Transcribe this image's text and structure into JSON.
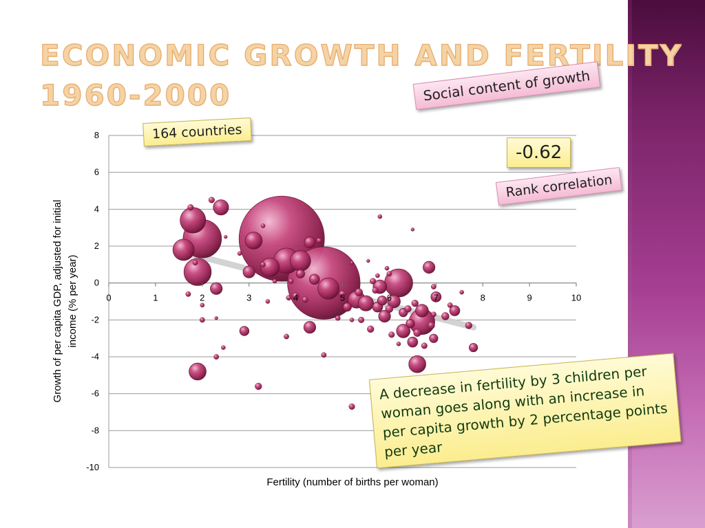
{
  "slide": {
    "title_line1": "ECONOMIC GROWTH AND FERTILITY",
    "title_line2": "1960-2000",
    "countries_label": "164 countries",
    "social_label": "Social content of growth",
    "correlation_value": "-0.62",
    "rank_label": "Rank correlation",
    "note_text": "A decrease in fertility by 3 children per woman goes along with an increase in per capita growth by 2 percentage points per year",
    "colors": {
      "bubble": "#a3285a",
      "trend": "#cccccc",
      "title": "#f4d3a4",
      "stripe": "#7a2368"
    }
  },
  "chart_data": {
    "type": "bubble",
    "title": "",
    "xlabel": "Fertility (number of births per woman)",
    "ylabel_line1": "Growth of per capita GDP, adjusted for initial",
    "ylabel_line2": "income (% per year)",
    "xlim": [
      0,
      10
    ],
    "ylim": [
      -10,
      8
    ],
    "xticks": [
      0,
      1,
      2,
      3,
      4,
      5,
      6,
      7,
      8,
      9,
      10
    ],
    "yticks": [
      8,
      6,
      4,
      2,
      0,
      -2,
      -4,
      -6,
      -8,
      -10
    ],
    "grid": "horizontal",
    "trendline": {
      "x": [
        1.7,
        7.8
      ],
      "y": [
        1.6,
        -2.4
      ]
    },
    "points": [
      {
        "x": 3.7,
        "y": 2.4,
        "size": 1.0
      },
      {
        "x": 4.6,
        "y": 0.0,
        "size": 0.85
      },
      {
        "x": 2.0,
        "y": 2.4,
        "size": 0.45
      },
      {
        "x": 1.8,
        "y": 3.4,
        "size": 0.3
      },
      {
        "x": 1.6,
        "y": 1.8,
        "size": 0.25
      },
      {
        "x": 1.9,
        "y": 0.6,
        "size": 0.32
      },
      {
        "x": 2.4,
        "y": 4.1,
        "size": 0.18
      },
      {
        "x": 3.1,
        "y": 2.3,
        "size": 0.2
      },
      {
        "x": 3.0,
        "y": 0.6,
        "size": 0.14
      },
      {
        "x": 3.45,
        "y": 0.85,
        "size": 0.22
      },
      {
        "x": 3.8,
        "y": 1.2,
        "size": 0.3
      },
      {
        "x": 4.1,
        "y": 1.2,
        "size": 0.24
      },
      {
        "x": 4.3,
        "y": 2.2,
        "size": 0.13
      },
      {
        "x": 4.7,
        "y": -0.3,
        "size": 0.25
      },
      {
        "x": 6.2,
        "y": 0.0,
        "size": 0.33
      },
      {
        "x": 5.3,
        "y": -0.9,
        "size": 0.2
      },
      {
        "x": 5.5,
        "y": -1.1,
        "size": 0.18
      },
      {
        "x": 5.8,
        "y": -0.2,
        "size": 0.16
      },
      {
        "x": 5.9,
        "y": -1.8,
        "size": 0.14
      },
      {
        "x": 6.1,
        "y": -1.0,
        "size": 0.15
      },
      {
        "x": 6.7,
        "y": -1.5,
        "size": 0.15
      },
      {
        "x": 6.7,
        "y": -2.1,
        "size": 0.3
      },
      {
        "x": 6.3,
        "y": -2.6,
        "size": 0.16
      },
      {
        "x": 6.5,
        "y": -3.2,
        "size": 0.12
      },
      {
        "x": 6.6,
        "y": -4.4,
        "size": 0.2
      },
      {
        "x": 6.85,
        "y": 0.85,
        "size": 0.14
      },
      {
        "x": 7.0,
        "y": -0.75,
        "size": 0.12
      },
      {
        "x": 7.4,
        "y": -1.5,
        "size": 0.12
      },
      {
        "x": 7.8,
        "y": -3.5,
        "size": 0.1
      },
      {
        "x": 7.7,
        "y": -2.3,
        "size": 0.08
      },
      {
        "x": 7.2,
        "y": -1.8,
        "size": 0.09
      },
      {
        "x": 6.95,
        "y": -3.0,
        "size": 0.1
      },
      {
        "x": 1.9,
        "y": -4.8,
        "size": 0.2
      },
      {
        "x": 2.3,
        "y": -0.3,
        "size": 0.14
      },
      {
        "x": 2.9,
        "y": -2.6,
        "size": 0.11
      },
      {
        "x": 3.2,
        "y": -5.6,
        "size": 0.08
      },
      {
        "x": 4.3,
        "y": -2.4,
        "size": 0.14
      },
      {
        "x": 5.2,
        "y": -6.7,
        "size": 0.07
      },
      {
        "x": 4.6,
        "y": -3.9,
        "size": 0.06
      },
      {
        "x": 3.8,
        "y": -2.9,
        "size": 0.06
      },
      {
        "x": 2.0,
        "y": -2.0,
        "size": 0.06
      },
      {
        "x": 2.3,
        "y": -1.9,
        "size": 0.04
      },
      {
        "x": 2.3,
        "y": -4.0,
        "size": 0.06
      },
      {
        "x": 2.45,
        "y": -3.5,
        "size": 0.05
      },
      {
        "x": 1.7,
        "y": -0.6,
        "size": 0.06
      },
      {
        "x": 1.75,
        "y": 4.1,
        "size": 0.07
      },
      {
        "x": 2.2,
        "y": 4.5,
        "size": 0.07
      },
      {
        "x": 5.8,
        "y": 3.6,
        "size": 0.05
      },
      {
        "x": 6.5,
        "y": 2.9,
        "size": 0.04
      },
      {
        "x": 4.5,
        "y": 2.3,
        "size": 0.06
      },
      {
        "x": 4.1,
        "y": 0.5,
        "size": 0.1
      },
      {
        "x": 4.4,
        "y": 0.2,
        "size": 0.12
      },
      {
        "x": 4.0,
        "y": -0.7,
        "size": 0.08
      },
      {
        "x": 4.2,
        "y": -0.9,
        "size": 0.07
      },
      {
        "x": 5.0,
        "y": -0.6,
        "size": 0.08
      },
      {
        "x": 5.1,
        "y": -1.3,
        "size": 0.1
      },
      {
        "x": 5.35,
        "y": -0.5,
        "size": 0.09
      },
      {
        "x": 5.4,
        "y": -2.0,
        "size": 0.07
      },
      {
        "x": 5.6,
        "y": -2.5,
        "size": 0.08
      },
      {
        "x": 5.7,
        "y": -0.4,
        "size": 0.07
      },
      {
        "x": 5.75,
        "y": -1.3,
        "size": 0.12
      },
      {
        "x": 5.85,
        "y": -0.95,
        "size": 0.11
      },
      {
        "x": 6.0,
        "y": -1.4,
        "size": 0.09
      },
      {
        "x": 6.05,
        "y": -2.8,
        "size": 0.07
      },
      {
        "x": 6.3,
        "y": -1.6,
        "size": 0.1
      },
      {
        "x": 6.4,
        "y": -1.4,
        "size": 0.08
      },
      {
        "x": 6.45,
        "y": -2.2,
        "size": 0.1
      },
      {
        "x": 6.55,
        "y": -1.1,
        "size": 0.08
      },
      {
        "x": 6.6,
        "y": -2.7,
        "size": 0.09
      },
      {
        "x": 6.75,
        "y": -3.4,
        "size": 0.07
      },
      {
        "x": 6.9,
        "y": -2.3,
        "size": 0.08
      },
      {
        "x": 5.65,
        "y": 0.1,
        "size": 0.07
      },
      {
        "x": 6.0,
        "y": 0.5,
        "size": 0.06
      },
      {
        "x": 5.95,
        "y": 0.8,
        "size": 0.05
      },
      {
        "x": 5.75,
        "y": 0.4,
        "size": 0.05
      },
      {
        "x": 5.55,
        "y": 1.2,
        "size": 0.04
      },
      {
        "x": 5.2,
        "y": 1.1,
        "size": 0.04
      },
      {
        "x": 3.9,
        "y": 0.1,
        "size": 0.06
      },
      {
        "x": 3.55,
        "y": 0.1,
        "size": 0.05
      },
      {
        "x": 3.4,
        "y": -1.0,
        "size": 0.05
      },
      {
        "x": 3.85,
        "y": -0.8,
        "size": 0.06
      },
      {
        "x": 2.8,
        "y": 1.6,
        "size": 0.05
      },
      {
        "x": 2.5,
        "y": 2.5,
        "size": 0.04
      },
      {
        "x": 2.0,
        "y": -1.2,
        "size": 0.05
      },
      {
        "x": 1.85,
        "y": 1.1,
        "size": 0.06
      },
      {
        "x": 6.95,
        "y": -0.2,
        "size": 0.06
      },
      {
        "x": 7.55,
        "y": -0.5,
        "size": 0.05
      },
      {
        "x": 7.3,
        "y": -1.2,
        "size": 0.06
      },
      {
        "x": 5.2,
        "y": -2.0,
        "size": 0.05
      },
      {
        "x": 4.9,
        "y": -1.9,
        "size": 0.06
      },
      {
        "x": 6.2,
        "y": -3.3,
        "size": 0.05
      },
      {
        "x": 6.95,
        "y": -1.7,
        "size": 0.06
      },
      {
        "x": 3.3,
        "y": 1.0,
        "size": 0.06
      },
      {
        "x": 3.3,
        "y": 3.1,
        "size": 0.05
      }
    ]
  }
}
